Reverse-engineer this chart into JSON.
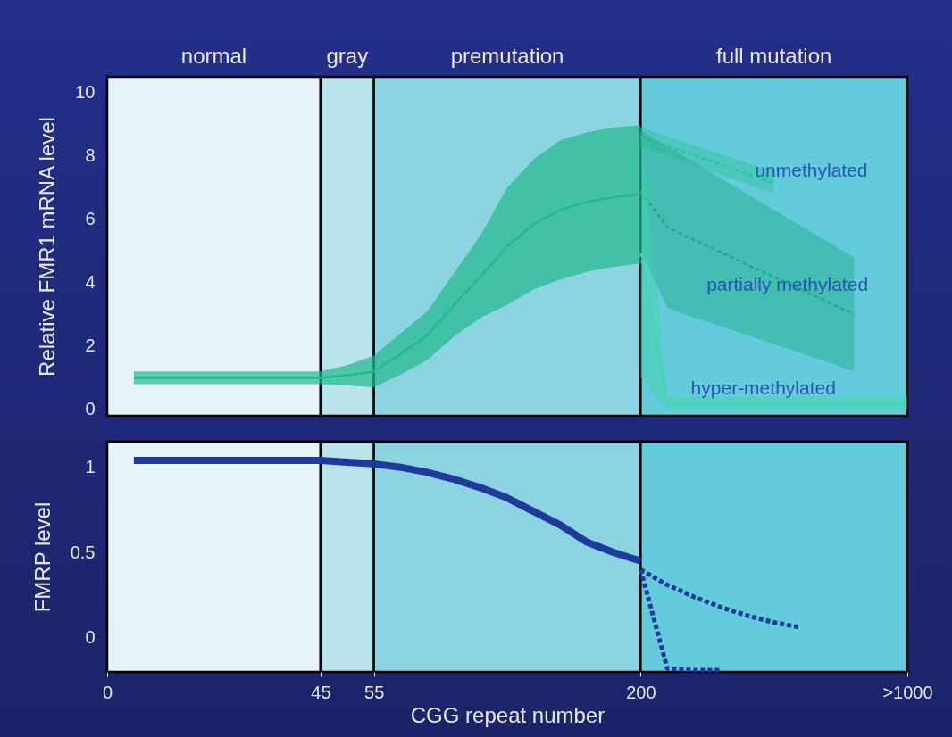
{
  "chart_data": [
    {
      "type": "line",
      "ylabel": "Relative FMR1 mRNA level",
      "categories": [
        "0",
        null,
        null,
        null,
        null,
        null,
        null,
        null,
        "45",
        null,
        "55",
        null,
        null,
        null,
        null,
        null,
        null,
        null,
        null,
        null,
        "200",
        null,
        null,
        null,
        null,
        null,
        null,
        null,
        null,
        null,
        ">1000"
      ],
      "ylim": [
        -0.2,
        10.5
      ],
      "yticks": [
        0,
        2,
        4,
        6,
        8,
        10
      ],
      "tick_labels": "y",
      "bands": [
        {
          "axis": "x",
          "from": "0",
          "to": "45",
          "label": "normal",
          "color": "#e6f4f8"
        },
        {
          "axis": "x",
          "from": "45",
          "to": "55",
          "label": "gray",
          "color": "#b9e3ea"
        },
        {
          "axis": "x",
          "from": "55",
          "to": "200",
          "label": "premutation",
          "color": "#8dd4e2"
        },
        {
          "axis": "x",
          "from": "200",
          "to": ">1000",
          "label": "full mutation",
          "color": "#63cbdb"
        }
      ],
      "series": [
        {
          "color": "#22b98f",
          "values": [
            null,
            1.0,
            1.0,
            1.0,
            1.0,
            1.0,
            1.0,
            1.0,
            1.0,
            1.08,
            1.2,
            1.75,
            2.33,
            3.3,
            4.2,
            5.15,
            5.85,
            6.3,
            6.55,
            6.7,
            6.79,
            null,
            null,
            null,
            null,
            null,
            null,
            null,
            null,
            null,
            null
          ],
          "lower": [
            null,
            0.8,
            0.8,
            0.8,
            0.8,
            0.8,
            0.8,
            0.8,
            0.8,
            0.76,
            0.7,
            1.1,
            1.56,
            2.3,
            2.9,
            3.3,
            3.8,
            4.1,
            4.35,
            4.5,
            4.61,
            null,
            null,
            null,
            null,
            null,
            null,
            null,
            null,
            null,
            null
          ],
          "upper": [
            null,
            1.2,
            1.2,
            1.2,
            1.2,
            1.2,
            1.2,
            1.2,
            1.2,
            1.4,
            1.7,
            2.4,
            3.1,
            4.3,
            5.5,
            7.0,
            7.9,
            8.5,
            8.75,
            8.9,
            8.97,
            null,
            null,
            null,
            null,
            null,
            null,
            null,
            null,
            null,
            null
          ]
        },
        {
          "color": "#2fc39a",
          "line_style": "dashed",
          "values": [
            null,
            null,
            null,
            null,
            null,
            null,
            null,
            null,
            null,
            null,
            null,
            null,
            null,
            null,
            null,
            null,
            null,
            null,
            null,
            null,
            8.6,
            8.31,
            8.02,
            7.73,
            7.44,
            7.15,
            null,
            null,
            null,
            null,
            null
          ],
          "lower": [
            null,
            null,
            null,
            null,
            null,
            null,
            null,
            null,
            null,
            null,
            null,
            null,
            null,
            null,
            null,
            null,
            null,
            null,
            null,
            null,
            8.3,
            8.0,
            7.7,
            7.4,
            7.1,
            6.8,
            null,
            null,
            null,
            null,
            null
          ],
          "upper": [
            null,
            null,
            null,
            null,
            null,
            null,
            null,
            null,
            null,
            null,
            null,
            null,
            null,
            null,
            null,
            null,
            null,
            null,
            null,
            null,
            8.9,
            8.62,
            8.34,
            8.06,
            7.78,
            7.5,
            null,
            null,
            null,
            null,
            null
          ]
        },
        {
          "color": "#1fae84",
          "line_style": "dashed",
          "values": [
            null,
            null,
            null,
            null,
            null,
            null,
            null,
            null,
            null,
            null,
            null,
            null,
            null,
            null,
            null,
            null,
            null,
            null,
            null,
            null,
            6.9,
            5.75,
            5.35,
            4.97,
            4.57,
            4.18,
            3.79,
            3.4,
            3.0,
            null,
            null
          ],
          "lower": [
            null,
            null,
            null,
            null,
            null,
            null,
            null,
            null,
            null,
            null,
            null,
            null,
            null,
            null,
            null,
            null,
            null,
            null,
            null,
            null,
            5.0,
            3.2,
            2.9,
            2.64,
            2.34,
            2.06,
            1.78,
            1.5,
            1.2,
            null,
            null
          ],
          "upper": [
            null,
            null,
            null,
            null,
            null,
            null,
            null,
            null,
            null,
            null,
            null,
            null,
            null,
            null,
            null,
            null,
            null,
            null,
            null,
            null,
            8.8,
            8.3,
            7.8,
            7.3,
            6.8,
            6.3,
            5.8,
            5.3,
            4.8,
            null,
            null
          ]
        },
        {
          "color": "#3fd6a8",
          "line_style": "dashed",
          "values": [
            null,
            null,
            null,
            null,
            null,
            null,
            null,
            null,
            null,
            null,
            null,
            null,
            null,
            null,
            null,
            null,
            null,
            null,
            null,
            null,
            4.95,
            0.2,
            0.2,
            0.2,
            0.2,
            0.2,
            0.2,
            0.2,
            0.2,
            0.2,
            0.2
          ],
          "lower": [
            null,
            null,
            null,
            null,
            null,
            null,
            null,
            null,
            null,
            null,
            null,
            null,
            null,
            null,
            null,
            null,
            null,
            null,
            null,
            null,
            1,
            0,
            0,
            0,
            0,
            0,
            0,
            0,
            0,
            0,
            0
          ],
          "upper": [
            null,
            null,
            null,
            null,
            null,
            null,
            null,
            null,
            null,
            null,
            null,
            null,
            null,
            null,
            null,
            null,
            null,
            null,
            null,
            null,
            8.9,
            0.4,
            0.4,
            0.4,
            0.4,
            0.4,
            0.4,
            0.4,
            0.4,
            0.4,
            0.4
          ]
        }
      ],
      "annotations": [
        "unmethylated",
        "partially methylated",
        "hyper-methylated"
      ]
    },
    {
      "type": "line",
      "xlabel": "CGG repeat number",
      "ylabel": "FMRP level",
      "categories": [
        "0",
        null,
        null,
        null,
        null,
        null,
        null,
        null,
        "45",
        null,
        "55",
        null,
        null,
        null,
        null,
        null,
        null,
        null,
        null,
        null,
        "200",
        null,
        null,
        null,
        null,
        null,
        null,
        null,
        null,
        null,
        ">1000"
      ],
      "ylim": [
        -0.2,
        1.15
      ],
      "yticks": [
        0,
        0.5,
        1
      ],
      "bands": [
        {
          "axis": "x",
          "from": "0",
          "to": "45",
          "color": "#e6f4f8"
        },
        {
          "axis": "x",
          "from": "45",
          "to": "55",
          "color": "#b9e3ea"
        },
        {
          "axis": "x",
          "from": "55",
          "to": "200",
          "color": "#8dd4e2"
        },
        {
          "axis": "x",
          "from": "200",
          "to": ">1000",
          "color": "#63cbdb"
        }
      ],
      "series": [
        {
          "color": "#1f3a9e",
          "values": [
            null,
            1.04,
            1.04,
            1.04,
            1.04,
            1.04,
            1.04,
            1.04,
            1.04,
            1.03,
            1.02,
            1.0,
            0.97,
            0.93,
            0.88,
            0.82,
            0.74,
            0.66,
            0.56,
            0.5,
            0.45,
            null,
            null,
            null,
            null,
            null,
            null,
            null,
            null,
            null,
            null
          ]
        },
        {
          "color": "#1f3a9e",
          "line_style": "dashed",
          "values": [
            null,
            null,
            null,
            null,
            null,
            null,
            null,
            null,
            null,
            null,
            null,
            null,
            null,
            null,
            null,
            null,
            null,
            null,
            null,
            null,
            0.4,
            0.31,
            0.24,
            0.18,
            0.13,
            0.09,
            0.06,
            null,
            null,
            null,
            null
          ]
        },
        {
          "color": "#1f3a9e",
          "line_style": "dashed",
          "values": [
            null,
            null,
            null,
            null,
            null,
            null,
            null,
            null,
            null,
            null,
            null,
            null,
            null,
            null,
            null,
            null,
            null,
            null,
            null,
            null,
            0.4,
            -0.18,
            -0.19,
            -0.19,
            null,
            null,
            null,
            null,
            null,
            null,
            null
          ]
        }
      ]
    }
  ]
}
